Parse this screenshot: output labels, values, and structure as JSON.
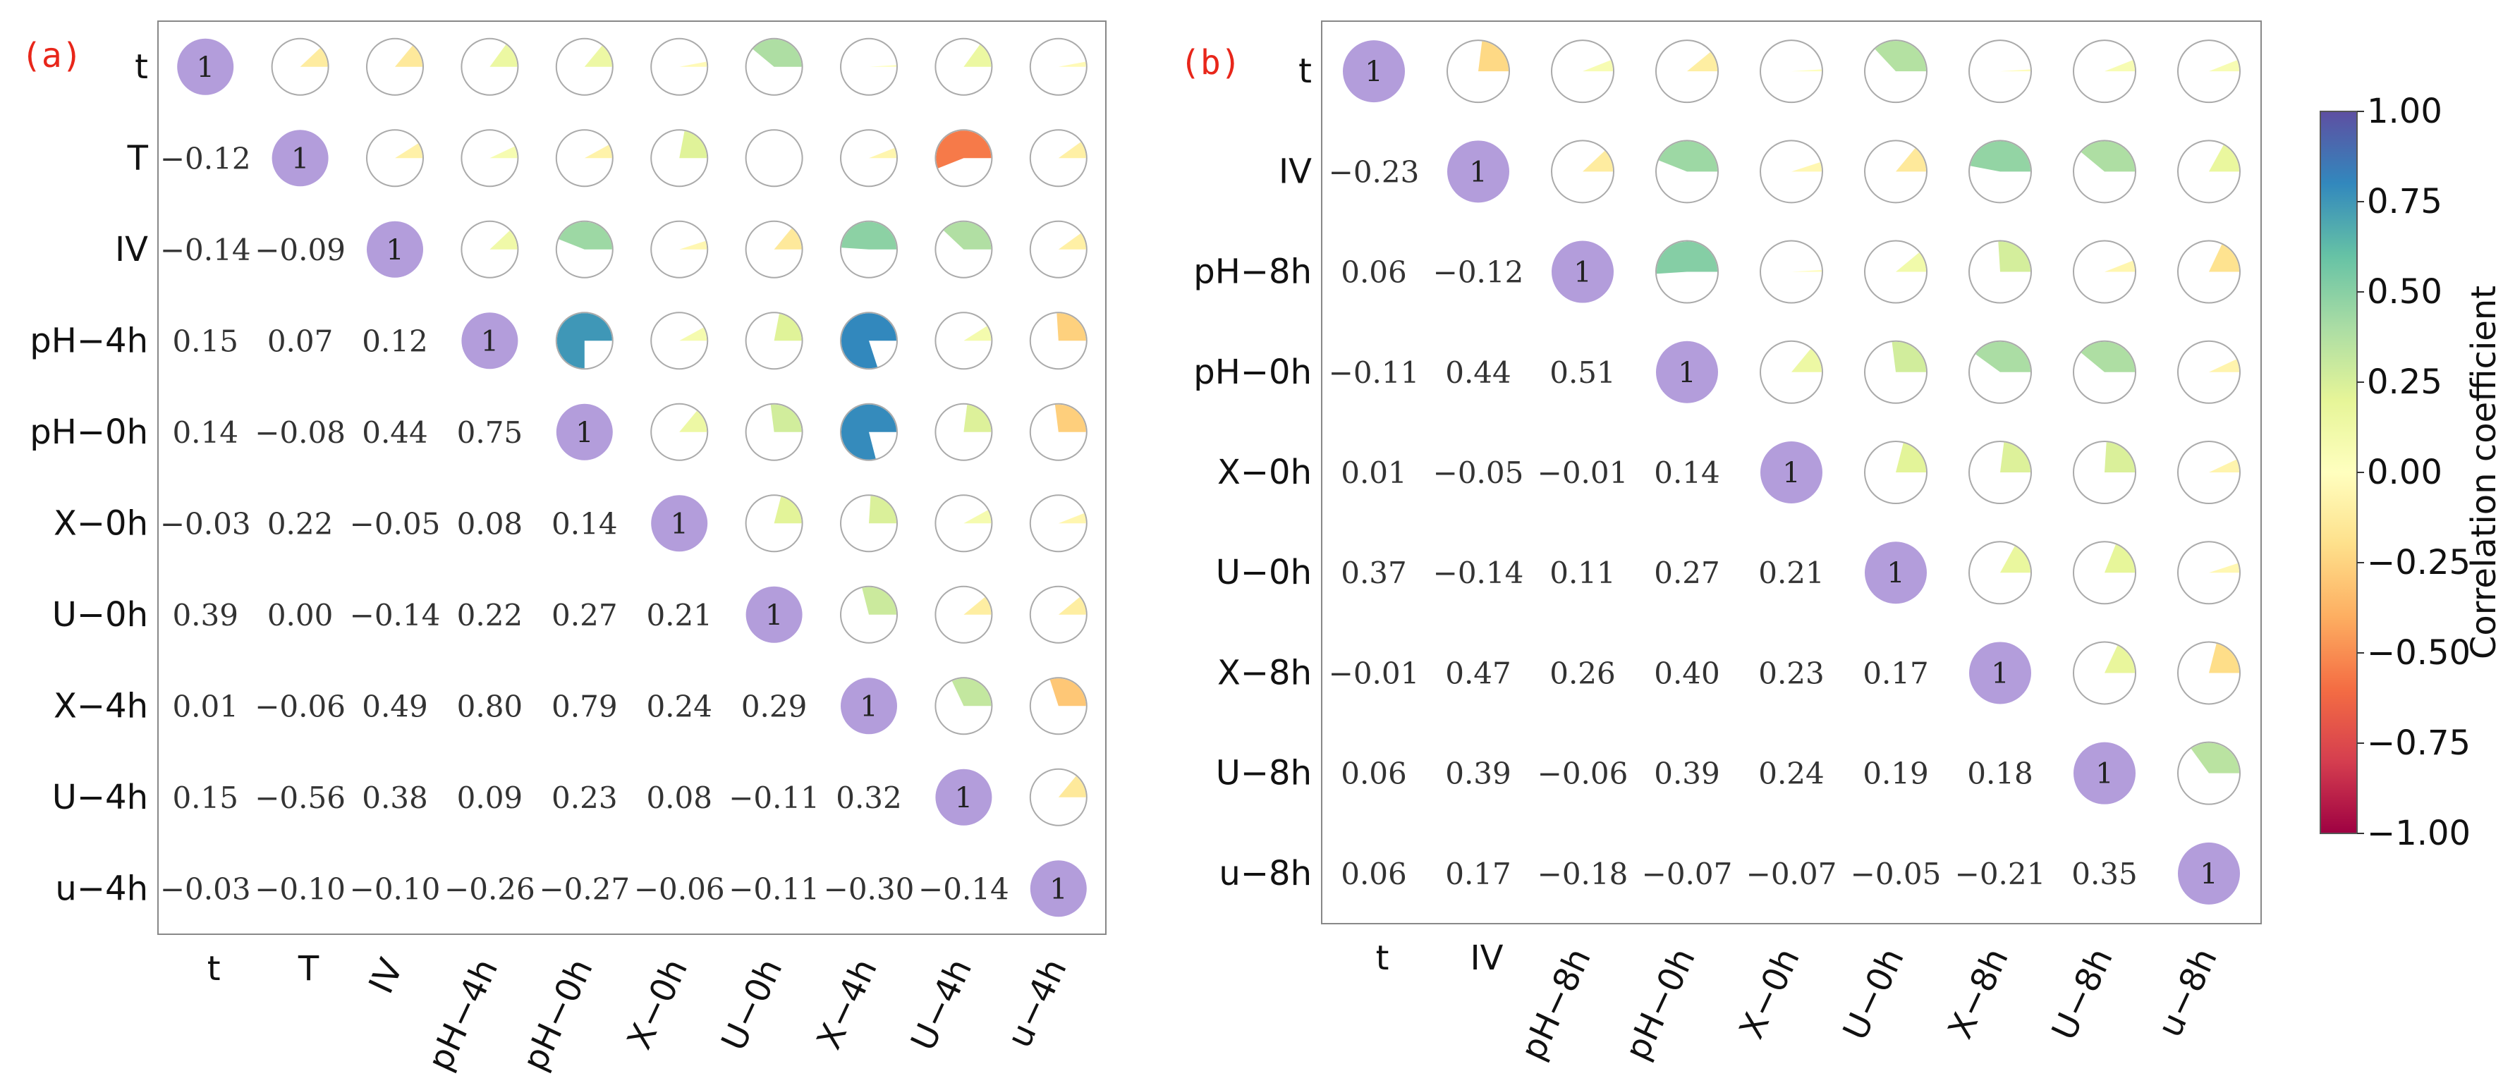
{
  "chart_data": [
    {
      "type": "heatmap",
      "panel_label": "(a)",
      "variables": [
        "t",
        "T",
        "IV",
        "pH−4h",
        "pH−0h",
        "X−0h",
        "U−0h",
        "X−4h",
        "U−4h",
        "u−4h"
      ],
      "diagonal_label": "1",
      "matrix": [
        [
          1.0,
          -0.12,
          -0.14,
          0.15,
          0.14,
          -0.03,
          0.39,
          0.01,
          0.15,
          -0.03
        ],
        [
          -0.12,
          1.0,
          -0.09,
          0.07,
          -0.08,
          0.22,
          0.0,
          -0.06,
          -0.56,
          -0.1
        ],
        [
          -0.14,
          -0.09,
          1.0,
          0.12,
          0.44,
          -0.05,
          -0.14,
          0.49,
          0.38,
          -0.1
        ],
        [
          0.15,
          0.07,
          0.12,
          1.0,
          0.75,
          0.08,
          0.22,
          0.8,
          0.09,
          -0.26
        ],
        [
          0.14,
          -0.08,
          0.44,
          0.75,
          1.0,
          0.14,
          0.27,
          0.79,
          0.23,
          -0.27
        ],
        [
          -0.03,
          0.22,
          -0.05,
          0.08,
          0.14,
          1.0,
          0.21,
          0.24,
          0.08,
          -0.06
        ],
        [
          0.39,
          0.0,
          -0.14,
          0.22,
          0.27,
          0.21,
          1.0,
          0.29,
          -0.11,
          -0.11
        ],
        [
          0.01,
          -0.06,
          0.49,
          0.8,
          0.79,
          0.24,
          0.29,
          1.0,
          0.32,
          -0.3
        ],
        [
          0.15,
          -0.56,
          0.38,
          0.09,
          0.23,
          0.08,
          -0.11,
          0.32,
          1.0,
          -0.14
        ],
        [
          -0.03,
          -0.1,
          -0.1,
          -0.26,
          -0.27,
          -0.06,
          -0.11,
          -0.3,
          -0.14,
          1.0
        ]
      ],
      "lower_text": [
        [],
        [
          "−0.12"
        ],
        [
          "−0.14",
          "−0.09"
        ],
        [
          "0.15",
          "0.07",
          "0.12"
        ],
        [
          "0.14",
          "−0.08",
          "0.44",
          "0.75"
        ],
        [
          "−0.03",
          "0.22",
          "−0.05",
          "0.08",
          "0.14"
        ],
        [
          "0.39",
          "0.00",
          "−0.14",
          "0.22",
          "0.27",
          "0.21"
        ],
        [
          "0.01",
          "−0.06",
          "0.49",
          "0.80",
          "0.79",
          "0.24",
          "0.29"
        ],
        [
          "0.15",
          "−0.56",
          "0.38",
          "0.09",
          "0.23",
          "0.08",
          "−0.11",
          "0.32"
        ],
        [
          "−0.03",
          "−0.10",
          "−0.10",
          "−0.26",
          "−0.27",
          "−0.06",
          "−0.11",
          "−0.30",
          "−0.14"
        ]
      ],
      "upper": "pie",
      "lower": "number"
    },
    {
      "type": "heatmap",
      "panel_label": "(b)",
      "variables": [
        "t",
        "IV",
        "pH−8h",
        "pH−0h",
        "X−0h",
        "U−0h",
        "X−8h",
        "U−8h",
        "u−8h"
      ],
      "diagonal_label": "1",
      "matrix": [
        [
          1.0,
          -0.23,
          0.06,
          -0.11,
          0.01,
          0.37,
          -0.01,
          0.06,
          0.06
        ],
        [
          -0.23,
          1.0,
          -0.12,
          0.44,
          -0.05,
          -0.14,
          0.47,
          0.39,
          0.17
        ],
        [
          0.06,
          -0.12,
          1.0,
          0.51,
          -0.01,
          0.11,
          0.26,
          -0.06,
          -0.18
        ],
        [
          -0.11,
          0.44,
          0.51,
          1.0,
          0.14,
          0.27,
          0.4,
          0.39,
          -0.07
        ],
        [
          0.01,
          -0.05,
          -0.01,
          0.14,
          1.0,
          0.21,
          0.23,
          0.24,
          -0.07
        ],
        [
          0.37,
          -0.14,
          0.11,
          0.27,
          0.21,
          1.0,
          0.17,
          0.19,
          -0.05
        ],
        [
          -0.01,
          0.47,
          0.26,
          0.4,
          0.23,
          0.17,
          1.0,
          0.18,
          -0.21
        ],
        [
          0.06,
          0.39,
          -0.06,
          0.39,
          0.24,
          0.19,
          0.18,
          1.0,
          0.35
        ],
        [
          0.06,
          0.17,
          -0.18,
          -0.07,
          -0.07,
          -0.05,
          -0.21,
          0.35,
          1.0
        ]
      ],
      "lower_text": [
        [],
        [
          "−0.23"
        ],
        [
          "0.06",
          "−0.12"
        ],
        [
          "−0.11",
          "0.44",
          "0.51"
        ],
        [
          "0.01",
          "−0.05",
          "−0.01",
          "0.14"
        ],
        [
          "0.37",
          "−0.14",
          "0.11",
          "0.27",
          "0.21"
        ],
        [
          "−0.01",
          "0.47",
          "0.26",
          "0.40",
          "0.23",
          "0.17"
        ],
        [
          "0.06",
          "0.39",
          "−0.06",
          "0.39",
          "0.24",
          "0.19",
          "0.18"
        ],
        [
          "0.06",
          "0.17",
          "−0.18",
          "−0.07",
          "−0.07",
          "−0.05",
          "−0.21",
          "0.35"
        ]
      ],
      "upper": "pie",
      "lower": "number"
    }
  ],
  "colorbar": {
    "title": "Correlation coefficient",
    "range": [
      -1.0,
      1.0
    ],
    "ticks": [
      1.0,
      0.75,
      0.5,
      0.25,
      0.0,
      -0.25,
      -0.5,
      -0.75,
      -1.0
    ],
    "tick_labels": [
      "1.00",
      "0.75",
      "0.50",
      "0.25",
      "0.00",
      "−0.25",
      "−0.50",
      "−0.75",
      "−1.00"
    ],
    "colormap": "Spectral",
    "stops": [
      "#9e0142",
      "#d53e4f",
      "#f46d43",
      "#fdae61",
      "#fee08b",
      "#ffffbf",
      "#e6f598",
      "#abdda4",
      "#66c2a5",
      "#3288bd",
      "#5e4fa2"
    ]
  },
  "colors": {
    "diagonal": "#b39ddb",
    "circle_outline": "#aaaaaa",
    "frame": "#888888",
    "panel_label": "#e8261a"
  }
}
